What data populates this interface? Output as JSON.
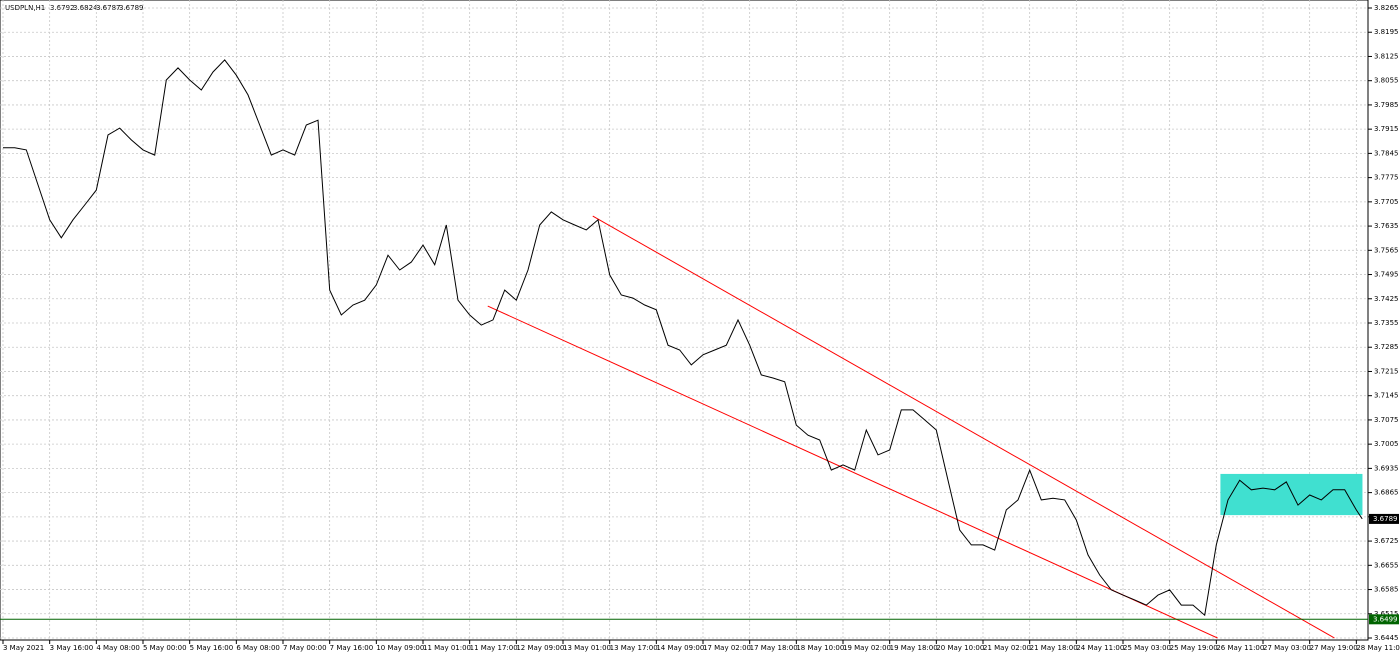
{
  "chart_data": {
    "type": "line",
    "title": "USDPLN,H1",
    "ohlc": [
      3.6792,
      3.6824,
      3.6787,
      3.6789
    ],
    "x": [
      0,
      4,
      8,
      12,
      16,
      20,
      24,
      28,
      32,
      36,
      40,
      44,
      48,
      52,
      56,
      60,
      64,
      68,
      72,
      76,
      80,
      84,
      88,
      92,
      96,
      100,
      104,
      108,
      112,
      116,
      120,
      124,
      128,
      132,
      136,
      140,
      144,
      148,
      152,
      156,
      160,
      164,
      168,
      172,
      176,
      180,
      184,
      188,
      192,
      196,
      200,
      204,
      208,
      212,
      216,
      220,
      224,
      228,
      232,
      236,
      240,
      244,
      248,
      252,
      256,
      260,
      264,
      268,
      272,
      276,
      280,
      284,
      288,
      292,
      296,
      300,
      304,
      308,
      312,
      316,
      320,
      324,
      328,
      332,
      336,
      340,
      344,
      348,
      352,
      356,
      360,
      364,
      368,
      372,
      376,
      380,
      384,
      388,
      392,
      396,
      400,
      404,
      408,
      412,
      416,
      420,
      424,
      428,
      432,
      436,
      440,
      444,
      448,
      452,
      456,
      460,
      464,
      466
    ],
    "series": [
      {
        "name": "USDPLN",
        "color": "#000000",
        "values": [
          3.7861,
          3.7861,
          3.7855,
          3.7754,
          3.7653,
          3.7601,
          3.7653,
          3.7696,
          3.7739,
          3.7898,
          3.7918,
          3.7884,
          3.7855,
          3.784,
          3.8057,
          3.8092,
          3.8057,
          3.8028,
          3.808,
          3.8115,
          3.8071,
          3.8014,
          3.7927,
          3.784,
          3.7855,
          3.784,
          3.7927,
          3.7941,
          3.745,
          3.7378,
          3.7407,
          3.7421,
          3.7465,
          3.7551,
          3.7508,
          3.7531,
          3.758,
          3.7523,
          3.7638,
          3.7421,
          3.7378,
          3.7349,
          3.7364,
          3.745,
          3.7421,
          3.7508,
          3.7638,
          3.7676,
          3.7653,
          3.7638,
          3.7624,
          3.7653,
          3.7494,
          3.7436,
          3.7427,
          3.7407,
          3.7393,
          3.7291,
          3.7277,
          3.7234,
          3.7263,
          3.7277,
          3.7291,
          3.7364,
          3.7291,
          3.7205,
          3.7196,
          3.7185,
          3.706,
          3.7031,
          3.7017,
          3.693,
          3.6945,
          3.693,
          3.7046,
          3.6974,
          3.6988,
          3.7104,
          3.7104,
          3.7075,
          3.7046,
          3.6901,
          3.6757,
          3.6714,
          3.6714,
          3.6699,
          3.6815,
          3.6844,
          3.693,
          3.6844,
          3.6849,
          3.6844,
          3.6786,
          3.6685,
          3.6627,
          3.6584,
          3.6569,
          3.6555,
          3.654,
          3.6569,
          3.6584,
          3.654,
          3.654,
          3.6511,
          3.6714,
          3.6844,
          3.6901,
          3.6873,
          3.6878,
          3.6873,
          3.6896,
          3.6829,
          3.6858,
          3.6844,
          3.6873,
          3.6873,
          3.6815,
          3.6789
        ]
      }
    ],
    "xlim": [
      0,
      468
    ],
    "xticks": [
      {
        "value": 0,
        "label": "3 May 2021"
      },
      {
        "value": 16,
        "label": "3 May 16:00"
      },
      {
        "value": 32,
        "label": "4 May 08:00"
      },
      {
        "value": 48,
        "label": "5 May 00:00"
      },
      {
        "value": 64,
        "label": "5 May 16:00"
      },
      {
        "value": 80,
        "label": "6 May 08:00"
      },
      {
        "value": 96,
        "label": "7 May 00:00"
      },
      {
        "value": 112,
        "label": "7 May 16:00"
      },
      {
        "value": 128,
        "label": "10 May 09:00"
      },
      {
        "value": 144,
        "label": "11 May 01:00"
      },
      {
        "value": 160,
        "label": "11 May 17:00"
      },
      {
        "value": 176,
        "label": "12 May 09:00"
      },
      {
        "value": 192,
        "label": "13 May 01:00"
      },
      {
        "value": 208,
        "label": "13 May 17:00"
      },
      {
        "value": 224,
        "label": "14 May 09:00"
      },
      {
        "value": 240,
        "label": "17 May 02:00"
      },
      {
        "value": 256,
        "label": "17 May 18:00"
      },
      {
        "value": 272,
        "label": "18 May 10:00"
      },
      {
        "value": 288,
        "label": "19 May 02:00"
      },
      {
        "value": 304,
        "label": "19 May 18:00"
      },
      {
        "value": 320,
        "label": "20 May 10:00"
      },
      {
        "value": 336,
        "label": "21 May 02:00"
      },
      {
        "value": 352,
        "label": "21 May 18:00"
      },
      {
        "value": 368,
        "label": "24 May 11:00"
      },
      {
        "value": 384,
        "label": "25 May 03:00"
      },
      {
        "value": 400,
        "label": "25 May 19:00"
      },
      {
        "value": 416,
        "label": "26 May 11:00"
      },
      {
        "value": 432,
        "label": "27 May 03:00"
      },
      {
        "value": 448,
        "label": "27 May 19:00"
      },
      {
        "value": 464,
        "label": "28 May 11:00"
      }
    ],
    "ylim": [
      3.6445,
      3.8265
    ],
    "yticks": [
      3.8265,
      3.8195,
      3.8125,
      3.8055,
      3.7985,
      3.7915,
      3.7845,
      3.7775,
      3.7705,
      3.7635,
      3.7565,
      3.7495,
      3.7425,
      3.7355,
      3.7285,
      3.7215,
      3.7145,
      3.7075,
      3.7005,
      3.6935,
      3.6865,
      3.6795,
      3.6725,
      3.6655,
      3.6585,
      3.6515,
      3.6445
    ],
    "grid": true,
    "trendlines": [
      {
        "color": "#ff0000",
        "x": [
          202.2,
          456.5
        ],
        "y": [
          3.7664,
          3.6445
        ]
      },
      {
        "color": "#ff0000",
        "x": [
          166.2,
          416.4
        ],
        "y": [
          3.7404,
          3.6445
        ]
      }
    ],
    "rectangle": {
      "color": "#40e0d0",
      "x": [
        417.4,
        466.1
      ],
      "y": [
        3.6919,
        3.68
      ]
    },
    "hline": {
      "value": 3.6499,
      "color": "#006400"
    }
  }
}
